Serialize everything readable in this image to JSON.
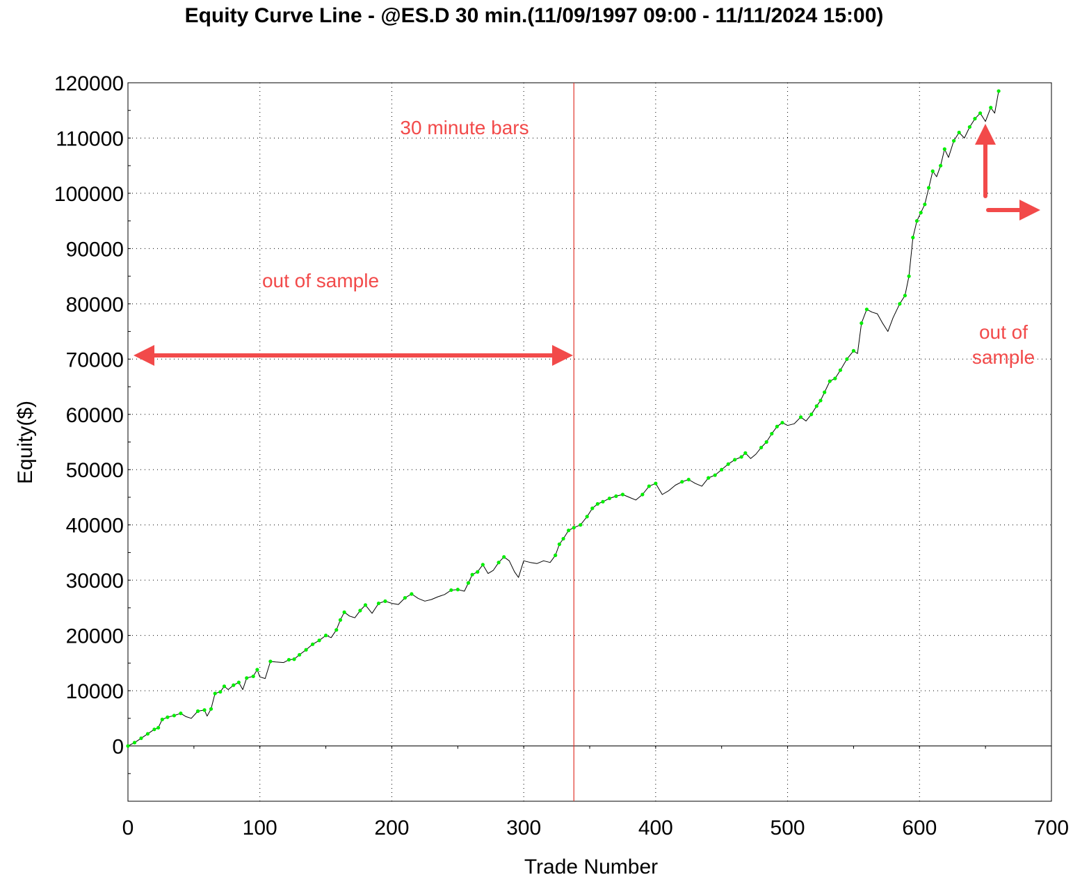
{
  "chart_data": {
    "type": "line",
    "title": "Equity Curve Line - @ES.D 30 min.(11/09/1997 09:00 - 11/11/2024 15:00)",
    "xlabel": "Trade Number",
    "ylabel": "Equity($)",
    "xlim": [
      0,
      700
    ],
    "ylim": [
      -10000,
      120000
    ],
    "x_ticks": [
      0,
      100,
      200,
      300,
      400,
      500,
      600,
      700
    ],
    "y_ticks": [
      0,
      10000,
      20000,
      30000,
      40000,
      50000,
      60000,
      70000,
      80000,
      90000,
      100000,
      110000,
      120000
    ],
    "grid": true,
    "colors": {
      "equity_line": "#000000",
      "new_high_marker": "#00ee00",
      "split_line": "#e0352b",
      "annotation": "#f24a4a"
    },
    "series": [
      {
        "values": [
          [
            0,
            0
          ],
          [
            5,
            600
          ],
          [
            10,
            1400
          ],
          [
            15,
            2200
          ],
          [
            20,
            3000
          ],
          [
            23,
            3300
          ],
          [
            26,
            4800
          ],
          [
            30,
            5200
          ],
          [
            35,
            5500
          ],
          [
            40,
            5900
          ],
          [
            44,
            5300
          ],
          [
            48,
            5000
          ],
          [
            53,
            6300
          ],
          [
            58,
            6500
          ],
          [
            60,
            5400
          ],
          [
            63,
            6700
          ],
          [
            66,
            9500
          ],
          [
            70,
            9800
          ],
          [
            73,
            10800
          ],
          [
            76,
            10200
          ],
          [
            80,
            11000
          ],
          [
            84,
            11500
          ],
          [
            87,
            10200
          ],
          [
            90,
            12300
          ],
          [
            95,
            12600
          ],
          [
            98,
            13800
          ],
          [
            100,
            12500
          ],
          [
            104,
            12200
          ],
          [
            108,
            15300
          ],
          [
            112,
            15200
          ],
          [
            118,
            15100
          ],
          [
            122,
            15600
          ],
          [
            126,
            15700
          ],
          [
            130,
            16500
          ],
          [
            135,
            17400
          ],
          [
            140,
            18400
          ],
          [
            145,
            19100
          ],
          [
            150,
            20000
          ],
          [
            154,
            19600
          ],
          [
            158,
            21000
          ],
          [
            161,
            22800
          ],
          [
            164,
            24200
          ],
          [
            168,
            23500
          ],
          [
            172,
            23200
          ],
          [
            176,
            24500
          ],
          [
            180,
            25500
          ],
          [
            185,
            24000
          ],
          [
            190,
            25800
          ],
          [
            195,
            26200
          ],
          [
            200,
            25800
          ],
          [
            205,
            25600
          ],
          [
            210,
            26800
          ],
          [
            215,
            27500
          ],
          [
            220,
            26700
          ],
          [
            225,
            26200
          ],
          [
            230,
            26500
          ],
          [
            235,
            27000
          ],
          [
            240,
            27400
          ],
          [
            245,
            28200
          ],
          [
            250,
            28300
          ],
          [
            255,
            28000
          ],
          [
            258,
            29500
          ],
          [
            261,
            31000
          ],
          [
            265,
            31500
          ],
          [
            269,
            32800
          ],
          [
            273,
            31200
          ],
          [
            277,
            31800
          ],
          [
            281,
            33200
          ],
          [
            285,
            34200
          ],
          [
            289,
            33500
          ],
          [
            293,
            31500
          ],
          [
            296,
            30500
          ],
          [
            300,
            33500
          ],
          [
            305,
            33200
          ],
          [
            310,
            33000
          ],
          [
            315,
            33500
          ],
          [
            320,
            33200
          ],
          [
            324,
            34500
          ],
          [
            327,
            36500
          ],
          [
            330,
            37500
          ],
          [
            334,
            39000
          ],
          [
            338,
            39500
          ],
          [
            343,
            40000
          ],
          [
            348,
            41500
          ],
          [
            352,
            43000
          ],
          [
            356,
            43800
          ],
          [
            360,
            44200
          ],
          [
            365,
            44800
          ],
          [
            370,
            45200
          ],
          [
            375,
            45500
          ],
          [
            380,
            45000
          ],
          [
            385,
            44500
          ],
          [
            390,
            45500
          ],
          [
            395,
            47000
          ],
          [
            400,
            47500
          ],
          [
            405,
            45500
          ],
          [
            410,
            46200
          ],
          [
            415,
            47200
          ],
          [
            420,
            47800
          ],
          [
            425,
            48200
          ],
          [
            430,
            47500
          ],
          [
            435,
            47000
          ],
          [
            440,
            48500
          ],
          [
            445,
            49000
          ],
          [
            450,
            50000
          ],
          [
            455,
            51000
          ],
          [
            460,
            51800
          ],
          [
            465,
            52300
          ],
          [
            468,
            53000
          ],
          [
            472,
            52000
          ],
          [
            476,
            52800
          ],
          [
            480,
            54000
          ],
          [
            484,
            55000
          ],
          [
            488,
            56500
          ],
          [
            492,
            57800
          ],
          [
            496,
            58500
          ],
          [
            500,
            58000
          ],
          [
            505,
            58300
          ],
          [
            510,
            59500
          ],
          [
            514,
            58800
          ],
          [
            518,
            60000
          ],
          [
            522,
            61500
          ],
          [
            525,
            62500
          ],
          [
            528,
            64000
          ],
          [
            532,
            66000
          ],
          [
            536,
            66500
          ],
          [
            540,
            68000
          ],
          [
            545,
            70000
          ],
          [
            550,
            71500
          ],
          [
            553,
            71000
          ],
          [
            556,
            76500
          ],
          [
            560,
            79000
          ],
          [
            564,
            78500
          ],
          [
            568,
            78200
          ],
          [
            572,
            76500
          ],
          [
            576,
            75000
          ],
          [
            580,
            77500
          ],
          [
            585,
            80000
          ],
          [
            589,
            81500
          ],
          [
            592,
            85000
          ],
          [
            595,
            92000
          ],
          [
            598,
            95000
          ],
          [
            601,
            96500
          ],
          [
            604,
            98000
          ],
          [
            607,
            101000
          ],
          [
            610,
            104000
          ],
          [
            613,
            103000
          ],
          [
            616,
            105000
          ],
          [
            619,
            108000
          ],
          [
            622,
            106500
          ],
          [
            626,
            109500
          ],
          [
            630,
            111000
          ],
          [
            634,
            110000
          ],
          [
            638,
            112000
          ],
          [
            642,
            113500
          ],
          [
            646,
            114500
          ],
          [
            650,
            113000
          ],
          [
            654,
            115500
          ],
          [
            657,
            114500
          ],
          [
            660,
            118500
          ]
        ]
      }
    ],
    "split_line_x": 338,
    "annotations": {
      "bars_label": "30 minute bars",
      "left_sample_label": "out of sample",
      "right_sample_label_line1": "out of",
      "right_sample_label_line2": "sample"
    }
  }
}
